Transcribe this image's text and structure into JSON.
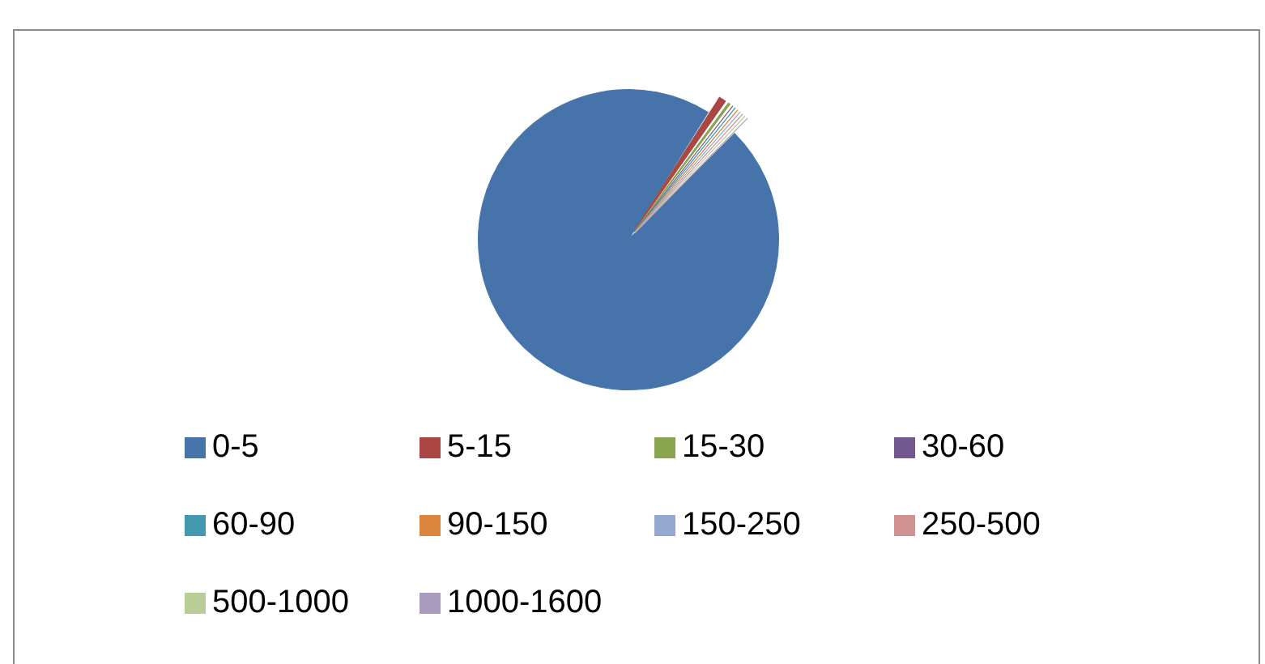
{
  "chart_data": {
    "type": "pie",
    "legend": "bottom",
    "categories": [
      "0-5",
      "5-15",
      "15-30",
      "30-60",
      "60-90",
      "90-150",
      "150-250",
      "250-500",
      "500-1000",
      "1000-1600"
    ],
    "values": [
      96.4,
      1.0,
      0.5,
      0.3,
      0.3,
      0.3,
      0.3,
      0.3,
      0.3,
      0.3
    ],
    "colors": [
      "#4674aa",
      "#aa4643",
      "#89a54e",
      "#71588f",
      "#4198af",
      "#db843d",
      "#93a9cf",
      "#d19392",
      "#b9cd96",
      "#a99bbd"
    ]
  }
}
